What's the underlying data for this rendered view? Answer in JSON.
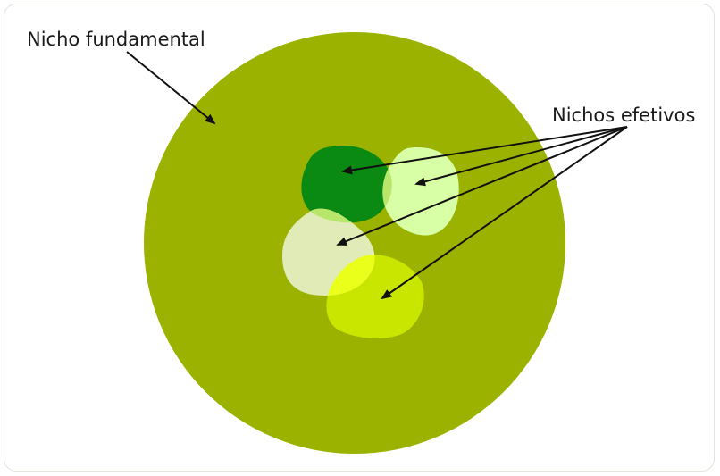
{
  "labels": {
    "fundamental": "Nicho fundamental",
    "effective": "Nichos efetivos"
  },
  "colors": {
    "fundamental_circle": "#9bb300",
    "niche_dark_green": "#0a8a12",
    "niche_pale_green": "#d9ffa6",
    "niche_cream": "#e1ebb8",
    "niche_lime": "#c8e600",
    "niche_overlap_light": "#b8e66a",
    "niche_overlap_yellow": "#eaff1a",
    "arrow": "#111111"
  },
  "icons": {
    "arrow_head": "arrowhead-icon"
  }
}
